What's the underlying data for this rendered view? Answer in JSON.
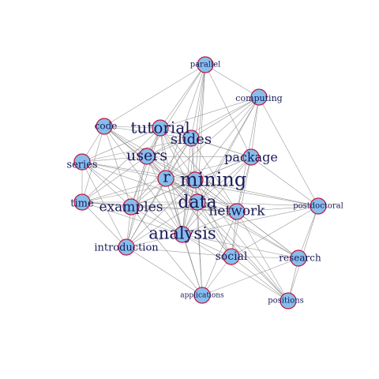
{
  "network": {
    "nodes": [
      {
        "id": "parallel",
        "label": "parallel"
      },
      {
        "id": "computing",
        "label": "computing"
      },
      {
        "id": "code",
        "label": "code"
      },
      {
        "id": "tutorial",
        "label": "tutorial"
      },
      {
        "id": "slides",
        "label": "slides"
      },
      {
        "id": "package",
        "label": "package"
      },
      {
        "id": "series",
        "label": "series"
      },
      {
        "id": "users",
        "label": "users"
      },
      {
        "id": "r",
        "label": "r"
      },
      {
        "id": "mining",
        "label": "mining"
      },
      {
        "id": "time",
        "label": "time"
      },
      {
        "id": "examples",
        "label": "examples"
      },
      {
        "id": "data",
        "label": "data"
      },
      {
        "id": "network",
        "label": "network"
      },
      {
        "id": "postdoctoral",
        "label": "postdoctoral"
      },
      {
        "id": "analysis",
        "label": "analysis"
      },
      {
        "id": "introduction",
        "label": "introduction"
      },
      {
        "id": "social",
        "label": "social"
      },
      {
        "id": "research",
        "label": "research"
      },
      {
        "id": "applications",
        "label": "applications"
      },
      {
        "id": "positions",
        "label": "positions"
      }
    ],
    "edges": [
      [
        "parallel",
        "computing"
      ],
      [
        "parallel",
        "r"
      ],
      [
        "parallel",
        "mining"
      ],
      [
        "parallel",
        "data"
      ],
      [
        "parallel",
        "slides"
      ],
      [
        "parallel",
        "tutorial"
      ],
      [
        "parallel",
        "package"
      ],
      [
        "parallel",
        "users"
      ],
      [
        "parallel",
        "analysis"
      ],
      [
        "parallel",
        "code"
      ],
      [
        "computing",
        "r"
      ],
      [
        "computing",
        "mining"
      ],
      [
        "computing",
        "data"
      ],
      [
        "computing",
        "package"
      ],
      [
        "computing",
        "slides"
      ],
      [
        "computing",
        "tutorial"
      ],
      [
        "computing",
        "users"
      ],
      [
        "computing",
        "network"
      ],
      [
        "computing",
        "postdoctoral"
      ],
      [
        "computing",
        "analysis"
      ],
      [
        "code",
        "tutorial"
      ],
      [
        "code",
        "series"
      ],
      [
        "code",
        "time"
      ],
      [
        "code",
        "r"
      ],
      [
        "code",
        "mining"
      ],
      [
        "code",
        "data"
      ],
      [
        "code",
        "examples"
      ],
      [
        "code",
        "users"
      ],
      [
        "code",
        "slides"
      ],
      [
        "code",
        "analysis"
      ],
      [
        "tutorial",
        "slides"
      ],
      [
        "tutorial",
        "users"
      ],
      [
        "tutorial",
        "r"
      ],
      [
        "tutorial",
        "mining"
      ],
      [
        "tutorial",
        "data"
      ],
      [
        "tutorial",
        "series"
      ],
      [
        "tutorial",
        "time"
      ],
      [
        "tutorial",
        "examples"
      ],
      [
        "tutorial",
        "package"
      ],
      [
        "tutorial",
        "analysis"
      ],
      [
        "tutorial",
        "introduction"
      ],
      [
        "tutorial",
        "network"
      ],
      [
        "slides",
        "users"
      ],
      [
        "slides",
        "r"
      ],
      [
        "slides",
        "mining"
      ],
      [
        "slides",
        "data"
      ],
      [
        "slides",
        "package"
      ],
      [
        "slides",
        "analysis"
      ],
      [
        "slides",
        "examples"
      ],
      [
        "slides",
        "network"
      ],
      [
        "slides",
        "series"
      ],
      [
        "slides",
        "introduction"
      ],
      [
        "package",
        "r"
      ],
      [
        "package",
        "mining"
      ],
      [
        "package",
        "data"
      ],
      [
        "package",
        "users"
      ],
      [
        "package",
        "network"
      ],
      [
        "package",
        "analysis"
      ],
      [
        "package",
        "postdoctoral"
      ],
      [
        "package",
        "examples"
      ],
      [
        "package",
        "social"
      ],
      [
        "series",
        "time"
      ],
      [
        "series",
        "users"
      ],
      [
        "series",
        "r"
      ],
      [
        "series",
        "mining"
      ],
      [
        "series",
        "data"
      ],
      [
        "series",
        "examples"
      ],
      [
        "series",
        "introduction"
      ],
      [
        "series",
        "analysis"
      ],
      [
        "users",
        "r"
      ],
      [
        "users",
        "mining"
      ],
      [
        "users",
        "data"
      ],
      [
        "users",
        "time"
      ],
      [
        "users",
        "examples"
      ],
      [
        "users",
        "analysis"
      ],
      [
        "users",
        "network"
      ],
      [
        "users",
        "introduction"
      ],
      [
        "users",
        "social"
      ],
      [
        "r",
        "mining"
      ],
      [
        "r",
        "data"
      ],
      [
        "r",
        "time"
      ],
      [
        "r",
        "examples"
      ],
      [
        "r",
        "network"
      ],
      [
        "r",
        "analysis"
      ],
      [
        "r",
        "introduction"
      ],
      [
        "r",
        "social"
      ],
      [
        "r",
        "research"
      ],
      [
        "r",
        "postdoctoral"
      ],
      [
        "r",
        "applications"
      ],
      [
        "r",
        "positions"
      ],
      [
        "mining",
        "data"
      ],
      [
        "mining",
        "network"
      ],
      [
        "mining",
        "analysis"
      ],
      [
        "mining",
        "social"
      ],
      [
        "mining",
        "time"
      ],
      [
        "mining",
        "examples"
      ],
      [
        "mining",
        "introduction"
      ],
      [
        "mining",
        "postdoctoral"
      ],
      [
        "mining",
        "research"
      ],
      [
        "mining",
        "applications"
      ],
      [
        "mining",
        "positions"
      ],
      [
        "time",
        "examples"
      ],
      [
        "time",
        "data"
      ],
      [
        "time",
        "analysis"
      ],
      [
        "time",
        "introduction"
      ],
      [
        "time",
        "network"
      ],
      [
        "examples",
        "data"
      ],
      [
        "examples",
        "analysis"
      ],
      [
        "examples",
        "introduction"
      ],
      [
        "examples",
        "network"
      ],
      [
        "examples",
        "applications"
      ],
      [
        "data",
        "network"
      ],
      [
        "data",
        "analysis"
      ],
      [
        "data",
        "social"
      ],
      [
        "data",
        "introduction"
      ],
      [
        "data",
        "research"
      ],
      [
        "data",
        "postdoctoral"
      ],
      [
        "data",
        "applications"
      ],
      [
        "data",
        "positions"
      ],
      [
        "network",
        "analysis"
      ],
      [
        "network",
        "social"
      ],
      [
        "network",
        "research"
      ],
      [
        "network",
        "postdoctoral"
      ],
      [
        "network",
        "applications"
      ],
      [
        "network",
        "positions"
      ],
      [
        "postdoctoral",
        "research"
      ],
      [
        "postdoctoral",
        "positions"
      ],
      [
        "postdoctoral",
        "analysis"
      ],
      [
        "postdoctoral",
        "social"
      ],
      [
        "analysis",
        "introduction"
      ],
      [
        "analysis",
        "social"
      ],
      [
        "analysis",
        "research"
      ],
      [
        "analysis",
        "applications"
      ],
      [
        "analysis",
        "positions"
      ],
      [
        "introduction",
        "social"
      ],
      [
        "introduction",
        "applications"
      ],
      [
        "social",
        "research"
      ],
      [
        "social",
        "applications"
      ],
      [
        "social",
        "positions"
      ],
      [
        "research",
        "positions"
      ],
      [
        "research",
        "applications"
      ]
    ]
  }
}
